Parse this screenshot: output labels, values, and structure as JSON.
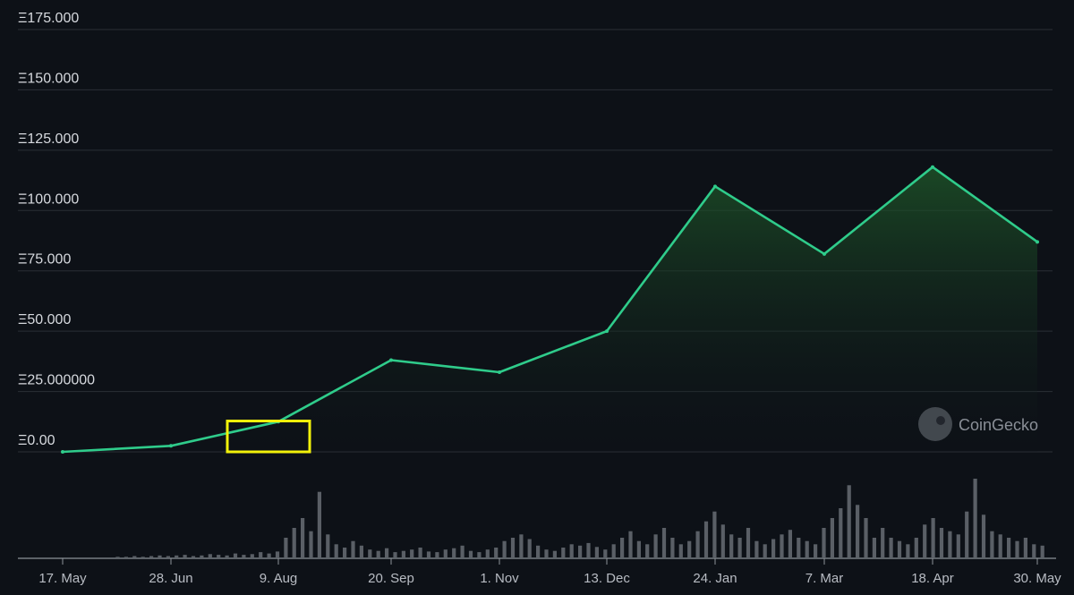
{
  "chart_data": {
    "type": "area",
    "title": "",
    "xlabel": "",
    "ylabel": "",
    "x_ticks": [
      "17. May",
      "28. Jun",
      "9. Aug",
      "20. Sep",
      "1. Nov",
      "13. Dec",
      "24. Jan",
      "7. Mar",
      "18. Apr",
      "30. May"
    ],
    "y_ticks": [
      "Ξ175.000",
      "Ξ150.000",
      "Ξ125.000",
      "Ξ100.000",
      "Ξ75.000",
      "Ξ50.000",
      "Ξ25.000000",
      "Ξ0.00"
    ],
    "ylim": [
      0,
      175
    ],
    "grid": true,
    "legend": "none",
    "colors": {
      "line": "#2fcc8b",
      "highlight": "#f2f20a",
      "volume": "#5a5f66",
      "grid": "#2a2f36"
    },
    "series": [
      {
        "x": [
          "17. May",
          "28. Jun",
          "9. Aug",
          "20. Sep",
          "1. Nov",
          "13. Dec",
          "24. Jan",
          "7. Mar",
          "18. Apr",
          "30. May"
        ],
        "values": [
          0.0,
          2.5,
          12.5,
          38.0,
          33.0,
          50.0,
          110.0,
          82.0,
          118.0,
          87.0
        ]
      }
    ],
    "volume": [
      0,
      1,
      1,
      2,
      1,
      2,
      3,
      2,
      3,
      4,
      2,
      3,
      5,
      4,
      3,
      6,
      4,
      5,
      8,
      6,
      9,
      30,
      45,
      60,
      40,
      100,
      35,
      20,
      15,
      25,
      18,
      12,
      10,
      14,
      8,
      10,
      12,
      15,
      9,
      8,
      12,
      14,
      18,
      10,
      8,
      12,
      15,
      25,
      30,
      35,
      28,
      18,
      12,
      10,
      15,
      20,
      18,
      22,
      16,
      12,
      20,
      30,
      40,
      25,
      20,
      35,
      45,
      30,
      20,
      25,
      40,
      55,
      70,
      50,
      35,
      30,
      45,
      25,
      20,
      28,
      35,
      42,
      30,
      25,
      20,
      45,
      60,
      75,
      110,
      80,
      60,
      30,
      45,
      30,
      25,
      20,
      30,
      50,
      60,
      45,
      40,
      35,
      70,
      120,
      65,
      40,
      35,
      30,
      25,
      30,
      20,
      18
    ],
    "highlight_box": {
      "x_range": [
        "9. Aug",
        "20. Sep"
      ],
      "y_range": [
        0,
        15
      ]
    }
  },
  "watermark": {
    "text": "CoinGecko",
    "icon": "coingecko-logo-icon"
  }
}
